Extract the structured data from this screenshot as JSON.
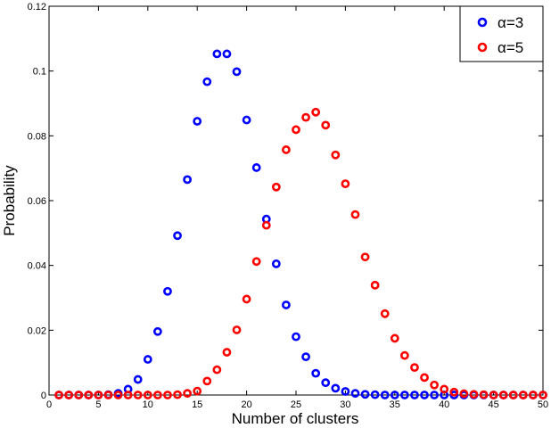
{
  "chart_data": {
    "type": "scatter",
    "xlabel": "Number of clusters",
    "ylabel": "Probability",
    "xlim": [
      0,
      50
    ],
    "ylim": [
      0,
      0.12
    ],
    "xticks": [
      0,
      5,
      10,
      15,
      20,
      25,
      30,
      35,
      40,
      45,
      50
    ],
    "yticks": [
      0,
      0.02,
      0.04,
      0.06,
      0.08,
      0.1,
      0.12
    ],
    "xtick_labels": [
      "0",
      "5",
      "10",
      "15",
      "20",
      "25",
      "30",
      "35",
      "40",
      "45",
      "50"
    ],
    "ytick_labels": [
      "0",
      "0.02",
      "0.04",
      "0.06",
      "0.08",
      "0.1",
      "0.12"
    ],
    "grid": false,
    "legend_position": "top-right",
    "x": [
      1,
      2,
      3,
      4,
      5,
      6,
      7,
      8,
      9,
      10,
      11,
      12,
      13,
      14,
      15,
      16,
      17,
      18,
      19,
      20,
      21,
      22,
      23,
      24,
      25,
      26,
      27,
      28,
      29,
      30,
      31,
      32,
      33,
      34,
      35,
      36,
      37,
      38,
      39,
      40,
      41,
      42,
      43,
      44,
      45,
      46,
      47,
      48,
      49,
      50
    ],
    "series": [
      {
        "name": "α=3",
        "color": "#0000ff",
        "values": [
          0,
          0,
          0,
          0,
          0,
          0.0001,
          0.0005,
          0.0018,
          0.0048,
          0.011,
          0.0196,
          0.032,
          0.0492,
          0.0665,
          0.0845,
          0.0967,
          0.1053,
          0.1053,
          0.0998,
          0.0849,
          0.0702,
          0.0543,
          0.0405,
          0.0278,
          0.018,
          0.0118,
          0.0067,
          0.0038,
          0.0021,
          0.0011,
          0.0005,
          0.0002,
          0.0001,
          0,
          0,
          0,
          0,
          0,
          0,
          0,
          0,
          0,
          0,
          0,
          0,
          0,
          0,
          0,
          0,
          0
        ]
      },
      {
        "name": "α=5",
        "color": "#ff0000",
        "values": [
          0,
          0,
          0,
          0,
          0,
          0,
          0,
          0,
          0,
          0,
          0,
          0,
          0.0001,
          0.0005,
          0.0012,
          0.0043,
          0.0078,
          0.0132,
          0.0201,
          0.0296,
          0.0412,
          0.0524,
          0.0642,
          0.0757,
          0.0819,
          0.0857,
          0.0873,
          0.0833,
          0.0741,
          0.0652,
          0.0557,
          0.0426,
          0.0339,
          0.0251,
          0.0175,
          0.0122,
          0.0085,
          0.0054,
          0.0031,
          0.0018,
          0.0009,
          0.0004,
          0.0002,
          0.0001,
          0,
          0,
          0,
          0,
          0,
          0
        ]
      }
    ]
  }
}
